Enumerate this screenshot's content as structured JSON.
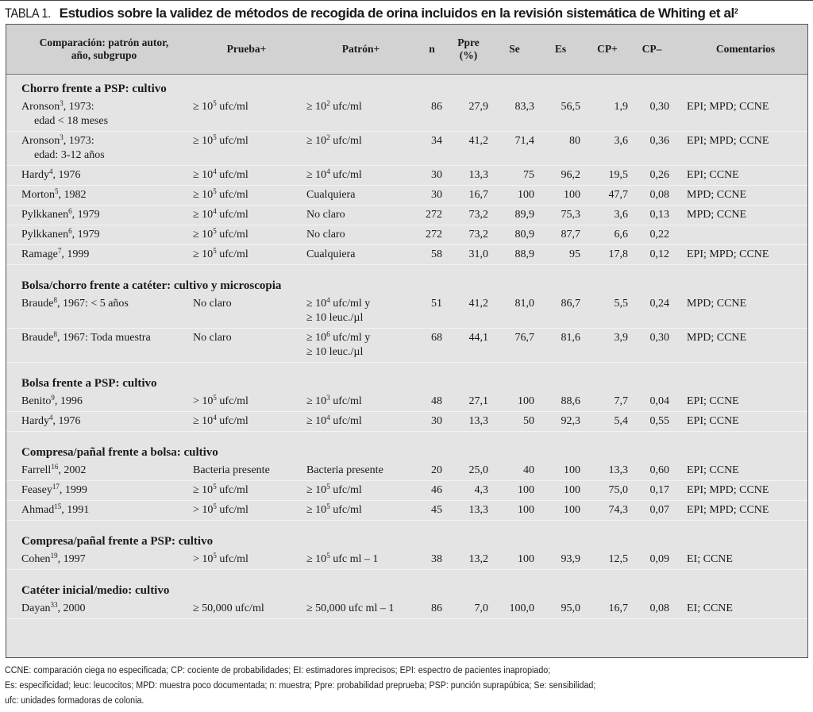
{
  "title": {
    "label": "TABLA 1.",
    "text": "Estudios sobre la validez de métodos de recogida de orina incluidos en la revisión sistemática de Whiting et al",
    "ref": "2"
  },
  "headers": [
    [
      "Comparación: patrón autor,",
      "año, subgrupo"
    ],
    [
      "Prueba+"
    ],
    [
      "Patrón+"
    ],
    [
      "n"
    ],
    [
      "Ppre",
      "(%)"
    ],
    [
      "Se"
    ],
    [
      "Es"
    ],
    [
      "CP+"
    ],
    [
      "CP–"
    ],
    [
      "Comentarios"
    ]
  ],
  "sections": [
    {
      "title": "Chorro frente a PSP: cultivo",
      "rows": [
        [
          [
            [
              "Aronson",
              {
                "sup": "3"
              },
              ", 1973:"
            ],
            [
              "edad < 18 meses"
            ]
          ],
          [
            "≥ 10",
            {
              "sup": "5"
            },
            " ufc/ml"
          ],
          [
            [
              "≥ 10",
              {
                "sup": "2"
              },
              " ufc/ml"
            ]
          ],
          "86",
          "27,9",
          "83,3",
          "56,5",
          "1,9",
          "0,30",
          "EPI; MPD; CCNE"
        ],
        [
          [
            [
              "Aronson",
              {
                "sup": "3"
              },
              ", 1973:"
            ],
            [
              "edad: 3-12 años"
            ]
          ],
          [
            "≥ 10",
            {
              "sup": "5"
            },
            " ufc/ml"
          ],
          [
            [
              "≥ 10",
              {
                "sup": "2"
              },
              " ufc/ml"
            ]
          ],
          "34",
          "41,2",
          "71,4",
          "80",
          "3,6",
          "0,36",
          "EPI; MPD; CCNE"
        ],
        [
          [
            [
              "Hardy",
              {
                "sup": "4"
              },
              ", 1976"
            ]
          ],
          [
            "≥ 10",
            {
              "sup": "4"
            },
            " ufc/ml"
          ],
          [
            [
              "≥ 10",
              {
                "sup": "4"
              },
              " ufc/ml"
            ]
          ],
          "30",
          "13,3",
          "75",
          "96,2",
          "19,5",
          "0,26",
          "EPI; CCNE"
        ],
        [
          [
            [
              "Morton",
              {
                "sup": "5"
              },
              ", 1982"
            ]
          ],
          [
            "≥ 10",
            {
              "sup": "5"
            },
            " ufc/ml"
          ],
          [
            [
              "Cualquiera"
            ]
          ],
          "30",
          "16,7",
          "100",
          "100",
          "47,7",
          "0,08",
          "MPD; CCNE"
        ],
        [
          [
            [
              "Pylkkanen",
              {
                "sup": "6"
              },
              ", 1979"
            ]
          ],
          [
            "≥ 10",
            {
              "sup": "4"
            },
            " ufc/ml"
          ],
          [
            [
              "No claro"
            ]
          ],
          "272",
          "73,2",
          "89,9",
          "75,3",
          "3,6",
          "0,13",
          "MPD; CCNE"
        ],
        [
          [
            [
              "Pylkkanen",
              {
                "sup": "6"
              },
              ", 1979"
            ]
          ],
          [
            "≥ 10",
            {
              "sup": "5"
            },
            " ufc/ml"
          ],
          [
            [
              "No claro"
            ]
          ],
          "272",
          "73,2",
          "80,9",
          "87,7",
          "6,6",
          "0,22",
          ""
        ],
        [
          [
            [
              "Ramage",
              {
                "sup": "7"
              },
              ", 1999"
            ]
          ],
          [
            "≥ 10",
            {
              "sup": "5"
            },
            " ufc/ml"
          ],
          [
            [
              "Cualquiera"
            ]
          ],
          "58",
          "31,0",
          "88,9",
          "95",
          "17,8",
          "0,12",
          "EPI; MPD; CCNE"
        ]
      ]
    },
    {
      "title": "Bolsa/chorro frente a catéter: cultivo y microscopia",
      "rows": [
        [
          [
            [
              "Braude",
              {
                "sup": "8"
              },
              ", 1967: < 5 años"
            ]
          ],
          [
            "No claro"
          ],
          [
            [
              "≥ 10",
              {
                "sup": "4"
              },
              " ufc/ml y"
            ],
            [
              "≥ 10 leuc./µl"
            ]
          ],
          "51",
          "41,2",
          "81,0",
          "86,7",
          "5,5",
          "0,24",
          "MPD; CCNE"
        ],
        [
          [
            [
              "Braude",
              {
                "sup": "8"
              },
              ", 1967: Toda muestra"
            ]
          ],
          [
            "No claro"
          ],
          [
            [
              "≥ 10",
              {
                "sup": "6"
              },
              " ufc/ml y"
            ],
            [
              "≥ 10 leuc./µl"
            ]
          ],
          "68",
          "44,1",
          "76,7",
          "81,6",
          "3,9",
          "0,30",
          "MPD; CCNE"
        ]
      ]
    },
    {
      "title": "Bolsa frente a PSP: cultivo",
      "rows": [
        [
          [
            [
              "Benito",
              {
                "sup": "9"
              },
              ", 1996"
            ]
          ],
          [
            "> 10",
            {
              "sup": "5"
            },
            " ufc/ml"
          ],
          [
            [
              "≥ 10",
              {
                "sup": "3"
              },
              " ufc/ml"
            ]
          ],
          "48",
          "27,1",
          "100",
          "88,6",
          "7,7",
          "0,04",
          "EPI; CCNE"
        ],
        [
          [
            [
              "Hardy",
              {
                "sup": "4"
              },
              ", 1976"
            ]
          ],
          [
            "≥ 10",
            {
              "sup": "4"
            },
            " ufc/ml"
          ],
          [
            [
              "≥ 10",
              {
                "sup": "4"
              },
              " ufc/ml"
            ]
          ],
          "30",
          "13,3",
          "50",
          "92,3",
          "5,4",
          "0,55",
          "EPI; CCNE"
        ]
      ]
    },
    {
      "title": "Compresa/pañal frente a bolsa: cultivo",
      "rows": [
        [
          [
            [
              "Farrell",
              {
                "sup": "16"
              },
              ", 2002"
            ]
          ],
          [
            "Bacteria presente"
          ],
          [
            [
              "Bacteria presente"
            ]
          ],
          "20",
          "25,0",
          "40",
          "100",
          "13,3",
          "0,60",
          "EPI; CCNE"
        ],
        [
          [
            [
              "Feasey",
              {
                "sup": "17"
              },
              ", 1999"
            ]
          ],
          [
            "≥ 10",
            {
              "sup": "5"
            },
            " ufc/ml"
          ],
          [
            [
              "≥ 10",
              {
                "sup": "5"
              },
              " ufc/ml"
            ]
          ],
          "46",
          "4,3",
          "100",
          "100",
          "75,0",
          "0,17",
          "EPI; MPD; CCNE"
        ],
        [
          [
            [
              "Ahmad",
              {
                "sup": "15"
              },
              ", 1991"
            ]
          ],
          [
            "> 10",
            {
              "sup": "5"
            },
            " ufc/ml"
          ],
          [
            [
              "≥ 10",
              {
                "sup": "5"
              },
              " ufc/ml"
            ]
          ],
          "45",
          "13,3",
          "100",
          "100",
          "74,3",
          "0,07",
          "EPI; MPD; CCNE"
        ]
      ]
    },
    {
      "title": "Compresa/pañal frente a PSP: cultivo",
      "rows": [
        [
          [
            [
              "Cohen",
              {
                "sup": "19"
              },
              ", 1997"
            ]
          ],
          [
            "> 10",
            {
              "sup": "5"
            },
            " ufc/ml"
          ],
          [
            [
              "≥ 10",
              {
                "sup": "5"
              },
              " ufc ml – 1"
            ]
          ],
          "38",
          "13,2",
          "100",
          "93,9",
          "12,5",
          "0,09",
          "EI; CCNE"
        ]
      ]
    },
    {
      "title": "Catéter inicial/medio: cultivo",
      "rows": [
        [
          [
            [
              "Dayan",
              {
                "sup": "33"
              },
              ", 2000"
            ]
          ],
          [
            "≥ 50,000 ufc/ml"
          ],
          [
            [
              "≥ 50,000 ufc ml – 1"
            ]
          ],
          "86",
          "7,0",
          "100,0",
          "95,0",
          "16,7",
          "0,08",
          "EI; CCNE"
        ]
      ]
    }
  ],
  "footnotes": [
    "CCNE: comparación ciega no especificada; CP: cociente de probabilidades; EI: estimadores imprecisos; EPI: espectro de pacientes inapropiado;",
    "Es: especificidad; leuc: leucocitos; MPD: muestra poco documentada; n: muestra; Ppre: probabilidad preprueba; PSP: punción suprapúbica; Se: sensibilidad;",
    "ufc: unidades formadoras de colonia."
  ]
}
